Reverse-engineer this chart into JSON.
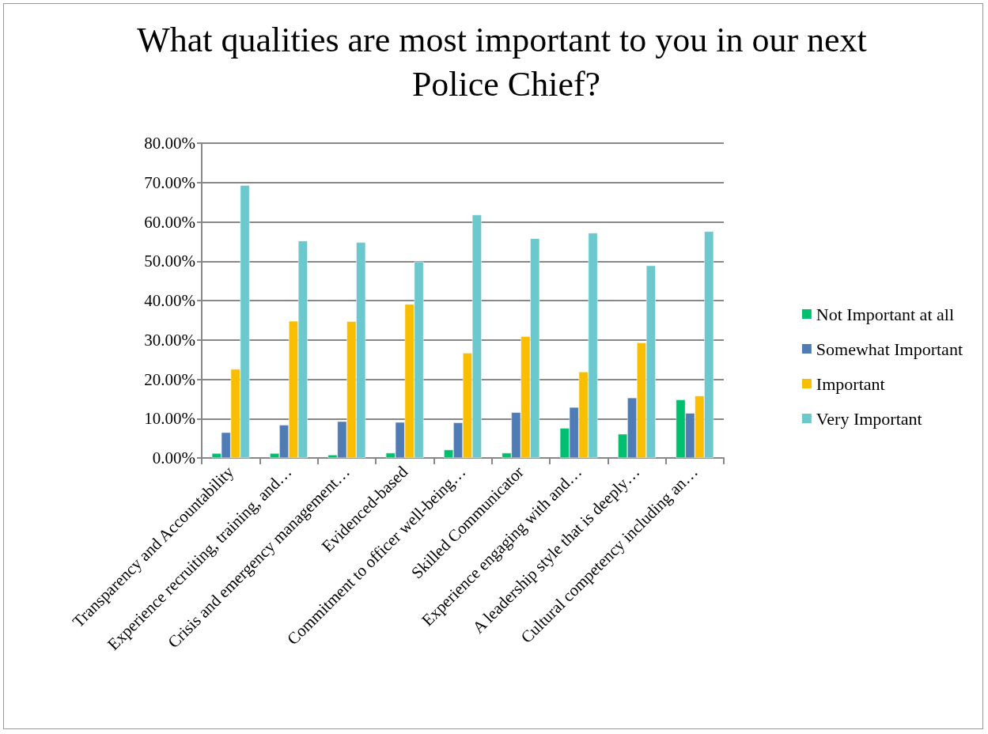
{
  "chart_data": {
    "type": "bar",
    "title": "What qualities are most important to you in our next Police Chief?",
    "categories": [
      "Transparency and Accountability",
      "Experience recruiting, training, and…",
      "Crisis and emergency management…",
      "Evidenced-based",
      "Commitment to officer well-being…",
      "Skilled Communicator",
      "Experience engaging with and…",
      "A leadership style that is deeply…",
      "Cultural competency including an…"
    ],
    "series": [
      {
        "name": "Not Important at all",
        "color": "#00bf6f",
        "values": [
          1.2,
          1.2,
          0.8,
          1.3,
          2.1,
          1.3,
          7.6,
          6.1,
          14.8
        ]
      },
      {
        "name": "Somewhat Important",
        "color": "#507cb6",
        "values": [
          6.5,
          8.4,
          9.3,
          9.1,
          9.0,
          11.6,
          12.9,
          15.3,
          11.4
        ]
      },
      {
        "name": "Important",
        "color": "#f9be00",
        "values": [
          22.6,
          34.8,
          34.7,
          39.1,
          26.7,
          30.9,
          21.9,
          29.3,
          15.8
        ]
      },
      {
        "name": "Very Important",
        "color": "#6bc8cd",
        "values": [
          69.3,
          55.2,
          54.8,
          49.9,
          61.8,
          55.8,
          57.2,
          48.9,
          57.6
        ]
      }
    ],
    "ylim": [
      0,
      80
    ],
    "yticks": [
      {
        "value": 0,
        "label": "0.00%"
      },
      {
        "value": 10,
        "label": "10.00%"
      },
      {
        "value": 20,
        "label": "20.00%"
      },
      {
        "value": 30,
        "label": "30.00%"
      },
      {
        "value": 40,
        "label": "40.00%"
      },
      {
        "value": 50,
        "label": "50.00%"
      },
      {
        "value": 60,
        "label": "60.00%"
      },
      {
        "value": 70,
        "label": "70.00%"
      },
      {
        "value": 80,
        "label": "80.00%"
      }
    ],
    "grid": "y",
    "legend": "right"
  }
}
